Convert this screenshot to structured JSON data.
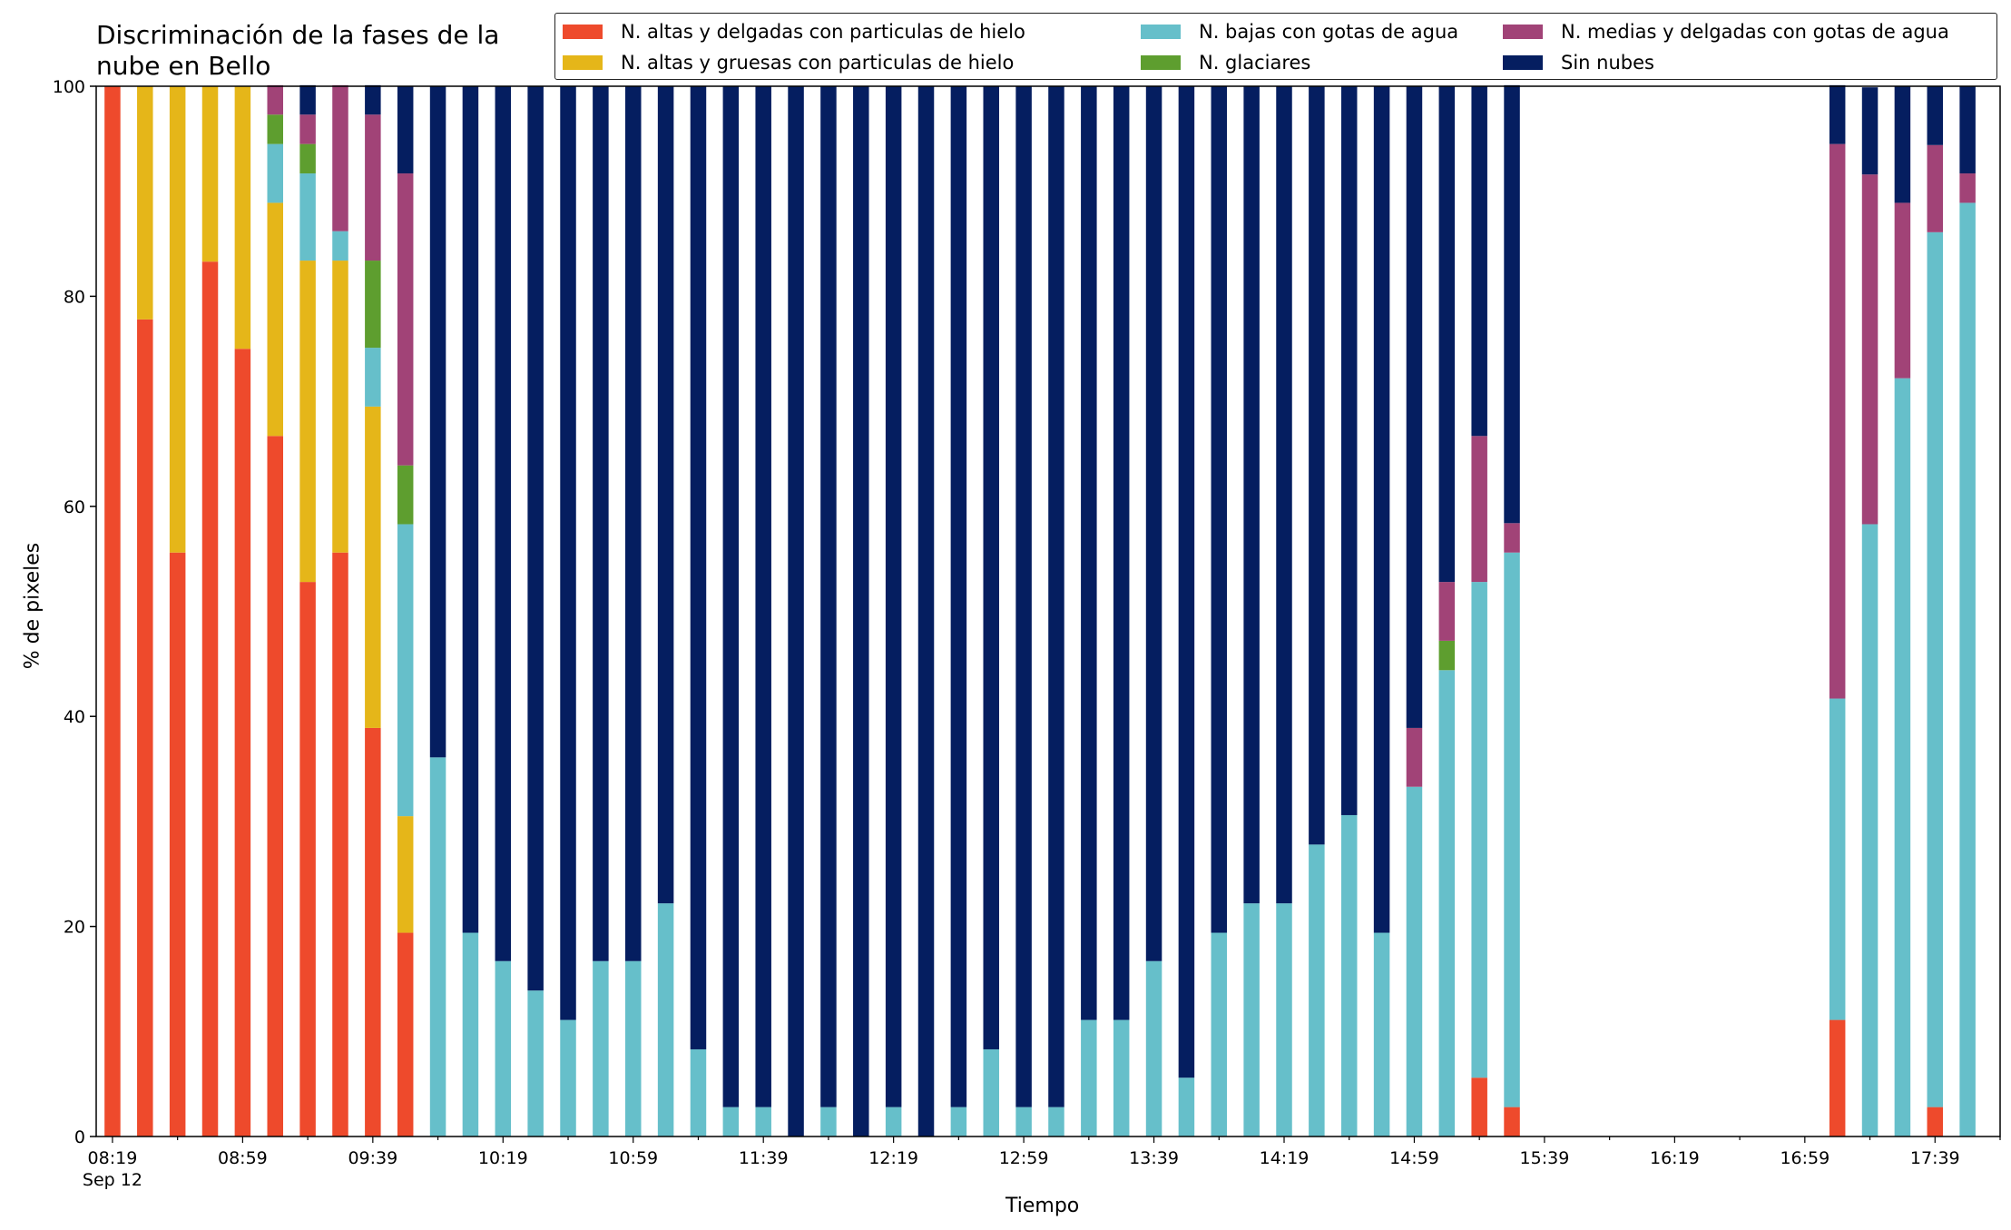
{
  "chart_data": {
    "type": "bar",
    "stacked": true,
    "title": "Discriminación de la fases de la nube en Bello",
    "xlabel": "Tiempo",
    "ylabel": "% de pixeles",
    "ylim": [
      0,
      100
    ],
    "yticks": [
      "0",
      "20",
      "40",
      "60",
      "80",
      "100"
    ],
    "xlim": [
      "08:14",
      "17:59"
    ],
    "xtick_labels": [
      {
        "time": "08:19",
        "label": "08:19",
        "sub": "Sep 12"
      },
      {
        "time": "08:59",
        "label": "08:59"
      },
      {
        "time": "09:39",
        "label": "09:39"
      },
      {
        "time": "10:19",
        "label": "10:19"
      },
      {
        "time": "10:59",
        "label": "10:59"
      },
      {
        "time": "11:39",
        "label": "11:39"
      },
      {
        "time": "12:19",
        "label": "12:19"
      },
      {
        "time": "12:59",
        "label": "12:59"
      },
      {
        "time": "13:39",
        "label": "13:39"
      },
      {
        "time": "14:19",
        "label": "14:19"
      },
      {
        "time": "14:59",
        "label": "14:59"
      },
      {
        "time": "15:39",
        "label": "15:39"
      },
      {
        "time": "16:19",
        "label": "16:19"
      },
      {
        "time": "16:59",
        "label": "16:59"
      },
      {
        "time": "17:39",
        "label": "17:39"
      }
    ],
    "legend_placement": "top-right",
    "grid": false,
    "x": [
      "08:19",
      "08:29",
      "08:39",
      "08:49",
      "08:59",
      "09:09",
      "09:19",
      "09:29",
      "09:39",
      "09:49",
      "09:59",
      "10:09",
      "10:19",
      "10:29",
      "10:39",
      "10:49",
      "10:59",
      "11:09",
      "11:19",
      "11:29",
      "11:39",
      "11:49",
      "11:59",
      "12:09",
      "12:19",
      "12:29",
      "12:39",
      "12:49",
      "12:59",
      "13:09",
      "13:19",
      "13:29",
      "13:39",
      "13:49",
      "13:59",
      "14:09",
      "14:19",
      "14:29",
      "14:39",
      "14:49",
      "14:59",
      "15:09",
      "15:19",
      "15:29",
      "17:09",
      "17:19",
      "17:29",
      "17:39",
      "17:49"
    ],
    "series": [
      {
        "name": "N. altas y delgadas con particulas de hielo",
        "color": "#ee4a2c",
        "values": [
          100,
          77.8,
          55.6,
          83.3,
          75,
          66.7,
          52.8,
          55.6,
          38.9,
          19.4,
          0,
          0,
          0,
          0,
          0,
          0,
          0,
          0,
          0,
          0,
          0,
          0,
          0,
          0,
          0,
          0,
          0,
          0,
          0,
          0,
          0,
          0,
          0,
          0,
          0,
          0,
          0,
          0,
          0,
          0,
          0,
          0,
          5.6,
          2.8,
          11.1,
          0,
          0,
          2.8,
          0
        ]
      },
      {
        "name": "N. altas y gruesas con particulas de hielo",
        "color": "#e5b619",
        "values": [
          0,
          22.2,
          44.4,
          16.7,
          25,
          22.2,
          30.6,
          27.8,
          30.6,
          11.1,
          0,
          0,
          0,
          0,
          0,
          0,
          0,
          0,
          0,
          0,
          0,
          0,
          0,
          0,
          0,
          0,
          0,
          0,
          0,
          0,
          0,
          0,
          0,
          0,
          0,
          0,
          0,
          0,
          0,
          0,
          0,
          0,
          0,
          0,
          0,
          0,
          0,
          0,
          0
        ]
      },
      {
        "name": "N. bajas con gotas de agua",
        "color": "#66bfca",
        "values": [
          0,
          0,
          0,
          0,
          0,
          5.6,
          8.3,
          2.8,
          5.6,
          27.8,
          36.1,
          19.4,
          16.7,
          13.9,
          11.1,
          16.7,
          16.7,
          22.2,
          8.3,
          2.8,
          2.8,
          0,
          2.8,
          0,
          2.8,
          0,
          2.8,
          8.3,
          2.8,
          2.8,
          11.1,
          11.1,
          16.7,
          5.6,
          19.4,
          22.2,
          22.2,
          27.8,
          30.6,
          19.4,
          33.3,
          44.4,
          47.2,
          52.8,
          30.6,
          58.3,
          72.2,
          83.3,
          88.9
        ]
      },
      {
        "name": "N. glaciares",
        "color": "#5e9e2f",
        "values": [
          0,
          0,
          0,
          0,
          0,
          2.8,
          2.8,
          0,
          8.3,
          5.6,
          0,
          0,
          0,
          0,
          0,
          0,
          0,
          0,
          0,
          0,
          0,
          0,
          0,
          0,
          0,
          0,
          0,
          0,
          0,
          0,
          0,
          0,
          0,
          0,
          0,
          0,
          0,
          0,
          0,
          0,
          0,
          2.8,
          0,
          0,
          0,
          0,
          0,
          0,
          0
        ]
      },
      {
        "name": "N. medias y delgadas con gotas de agua",
        "color": "#a14377",
        "values": [
          0,
          0,
          0,
          0,
          0,
          2.8,
          2.8,
          13.9,
          13.9,
          27.8,
          0,
          0,
          0,
          0,
          0,
          0,
          0,
          0,
          0,
          0,
          0,
          0,
          0,
          0,
          0,
          0,
          0,
          0,
          0,
          0,
          0,
          0,
          0,
          0,
          0,
          0,
          0,
          0,
          0,
          0,
          5.6,
          5.6,
          13.9,
          2.8,
          52.8,
          33.3,
          16.7,
          8.3,
          2.8
        ]
      },
      {
        "name": "Sin nubes",
        "color": "#051e60",
        "values": [
          0,
          0,
          0,
          0,
          0,
          0,
          2.8,
          0,
          2.8,
          8.3,
          63.9,
          80.6,
          83.3,
          86.1,
          88.9,
          83.3,
          83.3,
          77.8,
          91.7,
          97.2,
          97.2,
          100,
          97.2,
          100,
          97.2,
          100,
          97.2,
          91.7,
          97.2,
          97.2,
          88.9,
          88.9,
          83.3,
          94.4,
          80.6,
          77.8,
          77.8,
          72.2,
          69.4,
          80.6,
          61.1,
          47.2,
          33.3,
          41.7,
          5.6,
          8.3,
          11.1,
          5.6,
          8.3
        ]
      }
    ]
  }
}
